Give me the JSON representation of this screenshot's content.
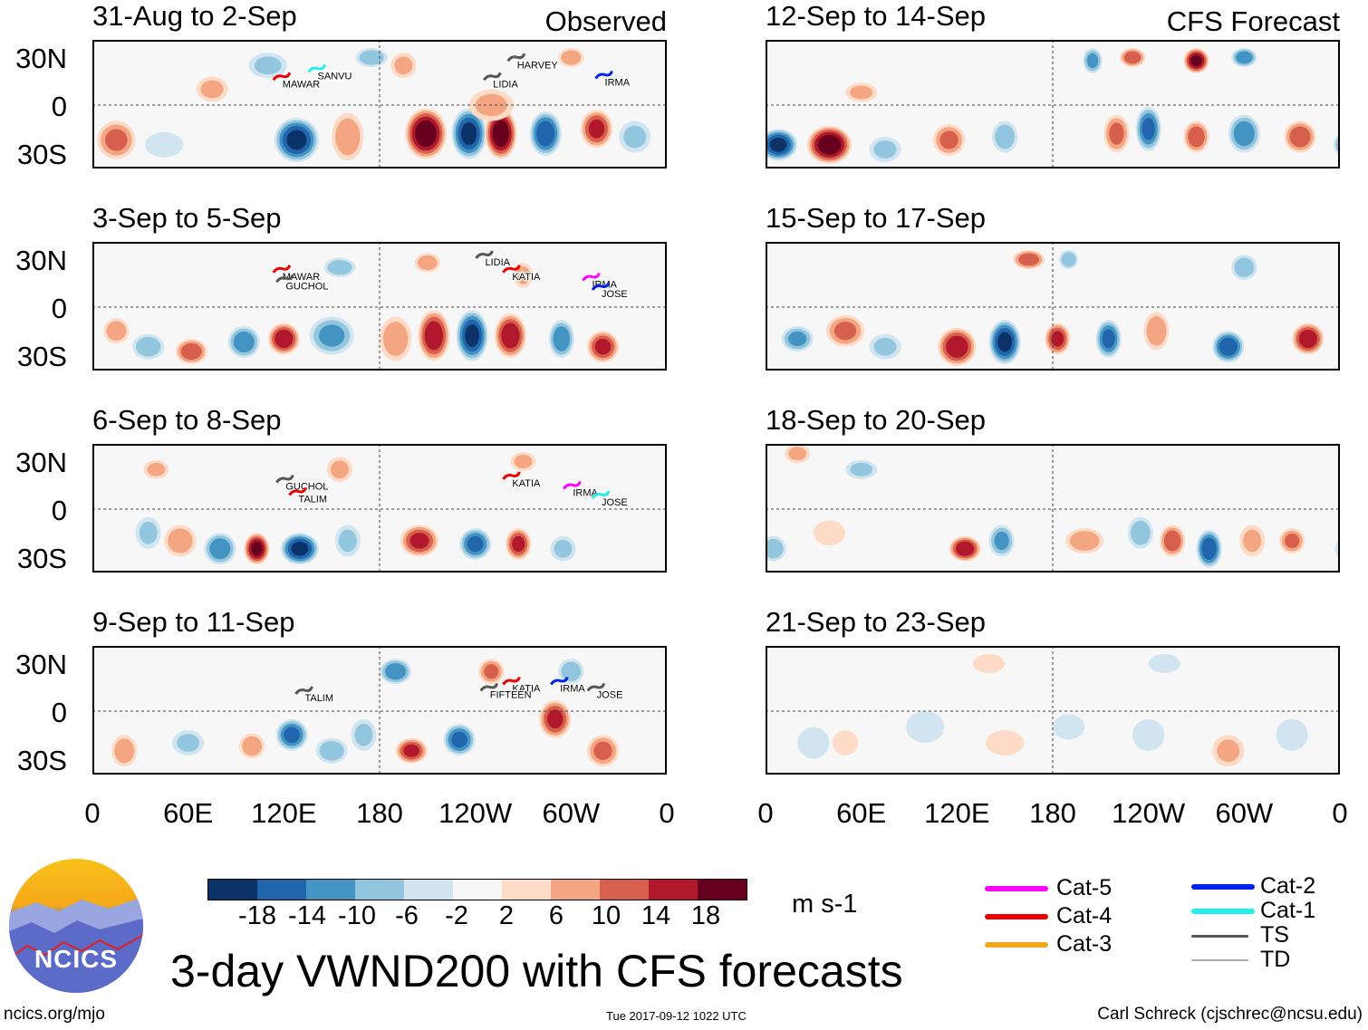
{
  "title": "3-day VWND200 with CFS forecasts",
  "labels": {
    "observed": "Observed",
    "forecast": "CFS Forecast"
  },
  "lat_labels": [
    "30N",
    "0",
    "30S"
  ],
  "lon_labels": [
    "0",
    "60E",
    "120E",
    "180",
    "120W",
    "60W",
    "0"
  ],
  "colorbar": {
    "colors": [
      "#0b3367",
      "#2166ac",
      "#4393c3",
      "#92c5de",
      "#d1e5f0",
      "#f7f7f7",
      "#fddbc7",
      "#f4a582",
      "#d6604d",
      "#b2182b",
      "#67001f"
    ],
    "ticks": [
      "-18",
      "-14",
      "-10",
      "-6",
      "-2",
      "2",
      "6",
      "10",
      "14",
      "18"
    ],
    "units": "m s-1"
  },
  "legend": [
    {
      "label": "Cat-5",
      "color": "#ff00ff"
    },
    {
      "label": "Cat-4",
      "color": "#ee0000"
    },
    {
      "label": "Cat-3",
      "color": "#f2a81d"
    },
    {
      "label": "Cat-2",
      "color": "#0022ee"
    },
    {
      "label": "Cat-1",
      "color": "#22eeee"
    },
    {
      "label": "TS",
      "color": "#555555"
    },
    {
      "label": "TD",
      "color": "#aaaaaa"
    }
  ],
  "footer": {
    "left": "ncics.org/mjo",
    "center": "Tue 2017-09-12 1022 UTC",
    "right": "Carl Schreck (cjschrec@ncsu.edu)"
  },
  "logo_text": "NCICS",
  "panels": [
    {
      "title": "31-Aug to 2-Sep",
      "type": "observed",
      "anomalies": [
        [
          15,
          -22,
          12,
          12,
          12
        ],
        [
          45,
          -25,
          12,
          8,
          -6
        ],
        [
          128,
          -22,
          14,
          14,
          -20
        ],
        [
          160,
          -20,
          10,
          15,
          10
        ],
        [
          209,
          -18,
          13,
          16,
          22
        ],
        [
          236,
          -18,
          11,
          16,
          -20
        ],
        [
          256,
          -18,
          10,
          16,
          22
        ],
        [
          284,
          -18,
          10,
          14,
          -18
        ],
        [
          316,
          -15,
          10,
          12,
          16
        ],
        [
          340,
          -20,
          10,
          10,
          -8
        ],
        [
          75,
          10,
          10,
          8,
          8
        ],
        [
          110,
          25,
          12,
          8,
          -8
        ],
        [
          175,
          30,
          10,
          6,
          -10
        ],
        [
          195,
          25,
          8,
          8,
          8
        ],
        [
          250,
          0,
          14,
          10,
          8
        ],
        [
          300,
          30,
          8,
          6,
          10
        ]
      ],
      "storms": [
        {
          "name": "SANVU",
          "lon": 140,
          "lat": 22,
          "color": "#22eeee"
        },
        {
          "name": "MAWAR",
          "lon": 118,
          "lat": 17,
          "color": "#ee0000"
        },
        {
          "name": "HARVEY",
          "lon": 265,
          "lat": 29,
          "color": "#555555"
        },
        {
          "name": "LIDIA",
          "lon": 250,
          "lat": 17,
          "color": "#555555"
        },
        {
          "name": "IRMA",
          "lon": 320,
          "lat": 18,
          "color": "#0022ee"
        }
      ]
    },
    {
      "title": "12-Sep to 14-Sep",
      "type": "forecast",
      "anomalies": [
        [
          8,
          -25,
          12,
          10,
          -20
        ],
        [
          40,
          -25,
          14,
          12,
          22
        ],
        [
          75,
          -28,
          10,
          8,
          -8
        ],
        [
          115,
          -22,
          10,
          10,
          12
        ],
        [
          150,
          -20,
          8,
          10,
          -10
        ],
        [
          220,
          -18,
          8,
          12,
          12
        ],
        [
          240,
          -15,
          8,
          14,
          -16
        ],
        [
          270,
          -20,
          8,
          10,
          14
        ],
        [
          300,
          -18,
          10,
          12,
          -14
        ],
        [
          335,
          -20,
          10,
          10,
          14
        ],
        [
          205,
          28,
          6,
          8,
          -12
        ],
        [
          230,
          30,
          8,
          6,
          14
        ],
        [
          270,
          28,
          8,
          8,
          20
        ],
        [
          300,
          30,
          8,
          6,
          -14
        ],
        [
          60,
          8,
          10,
          6,
          8
        ]
      ],
      "storms": []
    },
    {
      "title": "3-Sep to 5-Sep",
      "type": "observed",
      "anomalies": [
        [
          15,
          -15,
          8,
          8,
          10
        ],
        [
          35,
          -25,
          10,
          8,
          -10
        ],
        [
          62,
          -28,
          10,
          8,
          14
        ],
        [
          95,
          -22,
          10,
          10,
          -14
        ],
        [
          120,
          -20,
          10,
          10,
          18
        ],
        [
          150,
          -18,
          14,
          12,
          -12
        ],
        [
          190,
          -20,
          10,
          14,
          10
        ],
        [
          214,
          -18,
          10,
          16,
          18
        ],
        [
          238,
          -18,
          10,
          16,
          -20
        ],
        [
          262,
          -18,
          10,
          14,
          18
        ],
        [
          294,
          -20,
          8,
          12,
          -14
        ],
        [
          320,
          -25,
          10,
          10,
          16
        ],
        [
          155,
          25,
          10,
          6,
          -10
        ],
        [
          270,
          20,
          6,
          8,
          8
        ],
        [
          210,
          28,
          8,
          6,
          10
        ]
      ],
      "storms": [
        {
          "name": "MAWAR",
          "lon": 118,
          "lat": 23,
          "color": "#ee0000"
        },
        {
          "name": "GUCHOL",
          "lon": 120,
          "lat": 17,
          "color": "#555555"
        },
        {
          "name": "LIDIA",
          "lon": 245,
          "lat": 32,
          "color": "#555555"
        },
        {
          "name": "KATIA",
          "lon": 262,
          "lat": 23,
          "color": "#ee0000"
        },
        {
          "name": "IRMA",
          "lon": 312,
          "lat": 18,
          "color": "#ff00ff"
        },
        {
          "name": "JOSE",
          "lon": 318,
          "lat": 12,
          "color": "#0022ee"
        }
      ]
    },
    {
      "title": "15-Sep to 17-Sep",
      "type": "forecast",
      "anomalies": [
        [
          20,
          -20,
          10,
          8,
          -12
        ],
        [
          50,
          -15,
          12,
          10,
          12
        ],
        [
          75,
          -25,
          10,
          8,
          -8
        ],
        [
          120,
          -25,
          12,
          12,
          18
        ],
        [
          150,
          -22,
          10,
          14,
          -20
        ],
        [
          183,
          -20,
          8,
          10,
          16
        ],
        [
          215,
          -20,
          8,
          12,
          -16
        ],
        [
          245,
          -15,
          8,
          12,
          10
        ],
        [
          290,
          -25,
          10,
          10,
          -18
        ],
        [
          340,
          -20,
          10,
          10,
          18
        ],
        [
          165,
          30,
          10,
          6,
          14
        ],
        [
          190,
          30,
          6,
          6,
          -10
        ],
        [
          300,
          25,
          8,
          8,
          -10
        ]
      ],
      "storms": []
    },
    {
      "title": "6-Sep to 8-Sep",
      "type": "observed",
      "anomalies": [
        [
          35,
          -15,
          8,
          10,
          -8
        ],
        [
          55,
          -20,
          10,
          10,
          10
        ],
        [
          80,
          -25,
          10,
          10,
          -14
        ],
        [
          103,
          -25,
          8,
          10,
          20
        ],
        [
          130,
          -25,
          12,
          10,
          -20
        ],
        [
          160,
          -20,
          8,
          10,
          -8
        ],
        [
          205,
          -20,
          12,
          10,
          16
        ],
        [
          240,
          -22,
          10,
          10,
          -16
        ],
        [
          267,
          -22,
          8,
          10,
          16
        ],
        [
          295,
          -25,
          8,
          8,
          -8
        ],
        [
          155,
          25,
          8,
          8,
          8
        ],
        [
          270,
          30,
          8,
          6,
          8
        ],
        [
          40,
          25,
          8,
          6,
          8
        ]
      ],
      "storms": [
        {
          "name": "GUCHOL",
          "lon": 120,
          "lat": 18,
          "color": "#555555"
        },
        {
          "name": "TALIM",
          "lon": 128,
          "lat": 10,
          "color": "#ee0000"
        },
        {
          "name": "KATIA",
          "lon": 262,
          "lat": 20,
          "color": "#ee0000"
        },
        {
          "name": "IRMA",
          "lon": 300,
          "lat": 14,
          "color": "#ff00ff"
        },
        {
          "name": "JOSE",
          "lon": 318,
          "lat": 8,
          "color": "#22eeee"
        }
      ]
    },
    {
      "title": "18-Sep to 20-Sep",
      "type": "forecast",
      "anomalies": [
        [
          5,
          -25,
          8,
          8,
          -10
        ],
        [
          40,
          -15,
          10,
          8,
          6
        ],
        [
          125,
          -25,
          10,
          8,
          18
        ],
        [
          148,
          -20,
          8,
          10,
          -12
        ],
        [
          200,
          -20,
          12,
          8,
          10
        ],
        [
          235,
          -15,
          8,
          10,
          -10
        ],
        [
          255,
          -20,
          8,
          10,
          14
        ],
        [
          278,
          -25,
          8,
          12,
          -18
        ],
        [
          305,
          -20,
          8,
          10,
          8
        ],
        [
          330,
          -20,
          8,
          8,
          12
        ],
        [
          20,
          35,
          8,
          6,
          8
        ],
        [
          60,
          25,
          10,
          6,
          -8
        ]
      ],
      "storms": []
    },
    {
      "title": "9-Sep to 11-Sep",
      "type": "observed",
      "anomalies": [
        [
          20,
          -25,
          8,
          10,
          10
        ],
        [
          60,
          -20,
          10,
          8,
          -8
        ],
        [
          100,
          -22,
          8,
          8,
          10
        ],
        [
          125,
          -15,
          10,
          10,
          -16
        ],
        [
          150,
          -25,
          10,
          8,
          -10
        ],
        [
          170,
          -15,
          8,
          10,
          -8
        ],
        [
          200,
          -25,
          10,
          8,
          16
        ],
        [
          230,
          -18,
          10,
          10,
          -16
        ],
        [
          290,
          -5,
          10,
          12,
          16
        ],
        [
          320,
          -25,
          10,
          10,
          12
        ],
        [
          190,
          25,
          10,
          8,
          -14
        ],
        [
          250,
          25,
          8,
          8,
          12
        ],
        [
          300,
          25,
          8,
          8,
          -10
        ]
      ],
      "storms": [
        {
          "name": "TALIM",
          "lon": 132,
          "lat": 12,
          "color": "#555555"
        },
        {
          "name": "KATIA",
          "lon": 262,
          "lat": 18,
          "color": "#ee0000"
        },
        {
          "name": "FIFTEEN",
          "lon": 248,
          "lat": 14,
          "color": "#555555"
        },
        {
          "name": "IRMA",
          "lon": 292,
          "lat": 18,
          "color": "#0022ee"
        },
        {
          "name": "JOSE",
          "lon": 315,
          "lat": 14,
          "color": "#555555"
        }
      ]
    },
    {
      "title": "21-Sep to 23-Sep",
      "type": "forecast",
      "anomalies": [
        [
          30,
          -20,
          10,
          10,
          -6
        ],
        [
          50,
          -20,
          8,
          8,
          6
        ],
        [
          100,
          -10,
          12,
          10,
          -4
        ],
        [
          150,
          -20,
          12,
          8,
          6
        ],
        [
          190,
          -10,
          10,
          8,
          -4
        ],
        [
          240,
          -15,
          10,
          10,
          -6
        ],
        [
          290,
          -25,
          10,
          10,
          8
        ],
        [
          330,
          -15,
          10,
          10,
          -6
        ],
        [
          140,
          30,
          10,
          6,
          4
        ],
        [
          250,
          30,
          10,
          6,
          -4
        ]
      ],
      "storms": []
    }
  ]
}
